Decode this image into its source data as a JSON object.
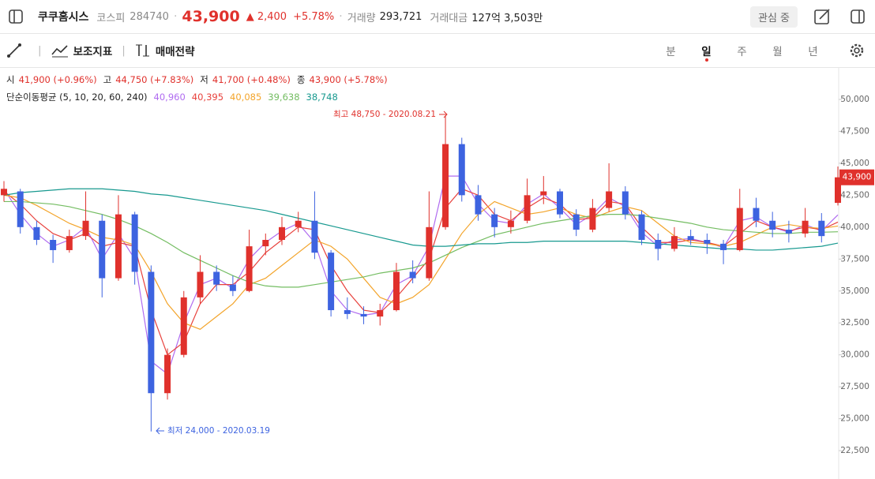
{
  "header": {
    "name": "쿠쿠홈시스",
    "market": "코스피",
    "code": "284740",
    "price": "43,900",
    "change": "▲ 2,400",
    "change_pct": "+5.78%",
    "volume_label": "거래량",
    "volume": "293,721",
    "amount_label": "거래대금",
    "amount": "127억 3,503만",
    "watch": "관심 중"
  },
  "toolbar": {
    "indicator": "보조지표",
    "strategy": "매매전략",
    "periods": [
      "분",
      "일",
      "주",
      "월",
      "년"
    ],
    "active_period": 1
  },
  "info": {
    "ohlc": [
      {
        "label": "시",
        "value": "41,900 (+0.96%)"
      },
      {
        "label": "고",
        "value": "44,750 (+7.83%)"
      },
      {
        "label": "저",
        "value": "41,700 (+0.48%)"
      },
      {
        "label": "종",
        "value": "43,900 (+5.78%)"
      }
    ],
    "ma_title": "단순이동평균 (5, 10, 20, 60, 240)"
  },
  "chart_data": {
    "type": "candlestick",
    "ylim": [
      20280,
      52470
    ],
    "yticks": [
      {
        "value": 22500,
        "label": "22,500"
      },
      {
        "value": 25000,
        "label": "25,000"
      },
      {
        "value": 27500,
        "label": "27,500"
      },
      {
        "value": 30000,
        "label": "30,000"
      },
      {
        "value": 32500,
        "label": "32,500"
      },
      {
        "value": 35000,
        "label": "35,000"
      },
      {
        "value": 37500,
        "label": "37,500"
      },
      {
        "value": 40000,
        "label": "40,000"
      },
      {
        "value": 42500,
        "label": "42,500"
      },
      {
        "value": 45000,
        "label": "45,000"
      },
      {
        "value": 47500,
        "label": "47,500"
      },
      {
        "value": 50000,
        "label": "50,000"
      }
    ],
    "up_color": "#e0312c",
    "down_color": "#3d63e0",
    "candles": [
      [
        42500,
        43600,
        42000,
        43000
      ],
      [
        42800,
        43000,
        39500,
        40000
      ],
      [
        40000,
        40500,
        38600,
        39000
      ],
      [
        39000,
        39400,
        37200,
        38200
      ],
      [
        38200,
        39800,
        38000,
        39300
      ],
      [
        39300,
        42800,
        39000,
        40500
      ],
      [
        40500,
        41000,
        34500,
        36000
      ],
      [
        36000,
        42500,
        35800,
        41000
      ],
      [
        41000,
        41200,
        35500,
        36500
      ],
      [
        36500,
        37000,
        24000,
        27000
      ],
      [
        27000,
        30500,
        26500,
        30000
      ],
      [
        30000,
        35000,
        29800,
        34500
      ],
      [
        34500,
        37800,
        34000,
        36500
      ],
      [
        36500,
        37000,
        35000,
        35500
      ],
      [
        35500,
        36200,
        34600,
        35000
      ],
      [
        35000,
        39800,
        34900,
        38500
      ],
      [
        38500,
        39500,
        37800,
        39000
      ],
      [
        39000,
        40800,
        38600,
        40000
      ],
      [
        40000,
        41200,
        39600,
        40500
      ],
      [
        40500,
        42800,
        37500,
        38000
      ],
      [
        38000,
        38200,
        33000,
        33500
      ],
      [
        33500,
        34500,
        32800,
        33200
      ],
      [
        33200,
        33800,
        32400,
        33000
      ],
      [
        33000,
        34000,
        32300,
        33500
      ],
      [
        33500,
        37200,
        33400,
        36500
      ],
      [
        36500,
        37400,
        35600,
        36000
      ],
      [
        36000,
        42800,
        35800,
        40000
      ],
      [
        40000,
        48750,
        39800,
        46500
      ],
      [
        46500,
        47000,
        42000,
        42500
      ],
      [
        42500,
        43300,
        40500,
        41000
      ],
      [
        41000,
        41500,
        39200,
        40000
      ],
      [
        40000,
        41300,
        39500,
        40500
      ],
      [
        40500,
        43800,
        40300,
        42500
      ],
      [
        42500,
        44000,
        41800,
        42800
      ],
      [
        42800,
        43000,
        40700,
        41000
      ],
      [
        41000,
        41400,
        39300,
        39800
      ],
      [
        39800,
        42200,
        39600,
        41500
      ],
      [
        41500,
        45000,
        41200,
        42800
      ],
      [
        42800,
        43200,
        40600,
        41000
      ],
      [
        41000,
        41300,
        38600,
        39000
      ],
      [
        39000,
        39500,
        37400,
        38300
      ],
      [
        38300,
        40000,
        38100,
        39300
      ],
      [
        39300,
        39800,
        38600,
        39000
      ],
      [
        39000,
        39500,
        37900,
        38700
      ],
      [
        38700,
        39000,
        37100,
        38200
      ],
      [
        38200,
        43000,
        38100,
        41500
      ],
      [
        41500,
        42300,
        40000,
        40500
      ],
      [
        40500,
        41200,
        39200,
        39800
      ],
      [
        39800,
        40500,
        38800,
        39500
      ],
      [
        39500,
        41500,
        39200,
        40500
      ],
      [
        40500,
        41100,
        38800,
        39300
      ],
      [
        41900,
        44750,
        41700,
        43900
      ]
    ],
    "moving_averages": [
      {
        "color": "#b06cf0",
        "value_label": "40,960",
        "values": [
          43000,
          41000,
          39500,
          38500,
          39000,
          40000,
          37500,
          39500,
          37500,
          29500,
          28500,
          32500,
          35500,
          36000,
          35200,
          37500,
          38800,
          39700,
          40300,
          38800,
          35000,
          33500,
          33100,
          33300,
          35500,
          36200,
          38500,
          44000,
          44000,
          41800,
          40500,
          40300,
          41800,
          42600,
          41500,
          40200,
          41000,
          42300,
          41600,
          39600,
          38500,
          39000,
          39100,
          38800,
          38400,
          40500,
          40800,
          40000,
          39600,
          40200,
          39700,
          40960
        ]
      },
      {
        "color": "#e8413c",
        "value_label": "40,395",
        "values": [
          42800,
          41800,
          40500,
          39500,
          39000,
          39500,
          38500,
          38800,
          38500,
          33500,
          30000,
          31000,
          34000,
          35500,
          35500,
          36500,
          38000,
          39000,
          40000,
          39800,
          37000,
          35000,
          33500,
          33300,
          34500,
          36000,
          37500,
          41500,
          43000,
          42500,
          41000,
          40500,
          41500,
          42300,
          41800,
          40600,
          40700,
          42000,
          41800,
          40000,
          38800,
          38800,
          39000,
          38800,
          38500,
          39500,
          40500,
          40000,
          39700,
          40000,
          39800,
          40395
        ]
      },
      {
        "color": "#f3a42a",
        "value_label": "40,085",
        "values": [
          42500,
          42300,
          41700,
          41000,
          40300,
          39800,
          39200,
          39000,
          38600,
          36500,
          34000,
          32500,
          32000,
          33000,
          34000,
          35500,
          36000,
          37000,
          38000,
          39000,
          38500,
          37500,
          36000,
          34500,
          34000,
          34500,
          35500,
          37500,
          39500,
          41000,
          42000,
          41500,
          41000,
          41200,
          41500,
          41000,
          40700,
          41200,
          41600,
          41300,
          40300,
          39300,
          38800,
          38700,
          38500,
          38800,
          39400,
          40000,
          40200,
          40000,
          39900,
          40085
        ]
      },
      {
        "color": "#74bd62",
        "value_label": "39,638",
        "values": [
          42000,
          42000,
          41900,
          41800,
          41600,
          41300,
          41000,
          40600,
          40100,
          39500,
          38800,
          38000,
          37400,
          36800,
          36200,
          35700,
          35400,
          35300,
          35300,
          35500,
          35700,
          35900,
          36100,
          36400,
          36600,
          36800,
          37200,
          37800,
          38400,
          38900,
          39400,
          39700,
          40000,
          40300,
          40500,
          40700,
          40900,
          41000,
          41000,
          40900,
          40700,
          40500,
          40300,
          40000,
          39800,
          39700,
          39600,
          39500,
          39500,
          39600,
          39600,
          39638
        ]
      },
      {
        "color": "#17998f",
        "value_label": "38,748",
        "values": [
          42500,
          42700,
          42800,
          42900,
          43000,
          43000,
          43000,
          42900,
          42800,
          42600,
          42500,
          42300,
          42100,
          41900,
          41700,
          41500,
          41300,
          41000,
          40700,
          40400,
          40100,
          39800,
          39500,
          39200,
          38900,
          38600,
          38500,
          38500,
          38600,
          38700,
          38700,
          38800,
          38800,
          38900,
          38900,
          38900,
          38900,
          38900,
          38900,
          38800,
          38700,
          38600,
          38500,
          38400,
          38300,
          38300,
          38200,
          38200,
          38300,
          38400,
          38500,
          38748
        ]
      }
    ],
    "last_price": {
      "value": 43900,
      "label": "43,900"
    },
    "annotations": {
      "high": "최고 48,750 - 2020.08.21",
      "low": "최저 24,000 - 2020.03.19"
    }
  }
}
